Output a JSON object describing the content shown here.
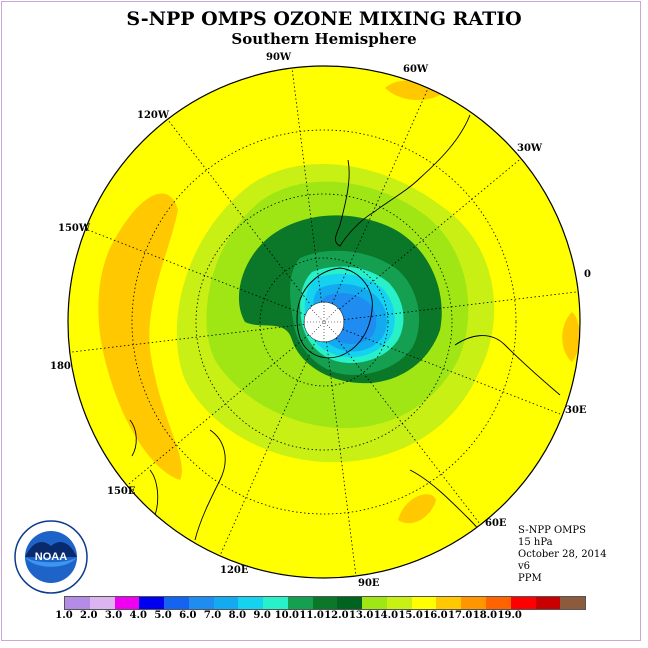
{
  "title": "S-NPP OMPS OZONE MIXING RATIO",
  "subtitle": "Southern Hemisphere",
  "longitude_labels": {
    "lon_90w": "90W",
    "lon_60w": "60W",
    "lon_30w": "30W",
    "lon_0": "0",
    "lon_30e": "30E",
    "lon_60e": "60E",
    "lon_90e": "90E",
    "lon_120e": "120E",
    "lon_150e": "150E",
    "lon_180": "180",
    "lon_150w": "150W",
    "lon_120w": "120W"
  },
  "metadata": {
    "instrument": "S-NPP OMPS",
    "level": "15 hPa",
    "date": "October 28, 2014",
    "version": "v6",
    "units": "PPM"
  },
  "colorbar": {
    "ticks": [
      "1.0",
      "2.0",
      "3.0",
      "4.0",
      "5.0",
      "6.0",
      "7.0",
      "8.0",
      "9.0",
      "10.0",
      "11.0",
      "12.0",
      "13.0",
      "14.0",
      "15.0",
      "16.0",
      "17.0",
      "18.0",
      "19.0"
    ],
    "colors": [
      "#b48ce6",
      "#dcb4f0",
      "#f000f0",
      "#0000f0",
      "#1464f0",
      "#1e8cf0",
      "#14aaf0",
      "#14d2f0",
      "#28f0c8",
      "#14a050",
      "#0a7828",
      "#006420",
      "#a0e614",
      "#c8f014",
      "#ffff00",
      "#ffc800",
      "#ff9600",
      "#ff6400",
      "#ff0000",
      "#c80000",
      "#8c5a3c"
    ]
  },
  "logo": {
    "text": "NOAA",
    "ring_text": "NATIONAL OCEANIC AND ATMOSPHERIC ADMINISTRATION • U.S. DEPARTMENT OF COMMERCE",
    "icon": "noaa-logo-icon"
  }
}
